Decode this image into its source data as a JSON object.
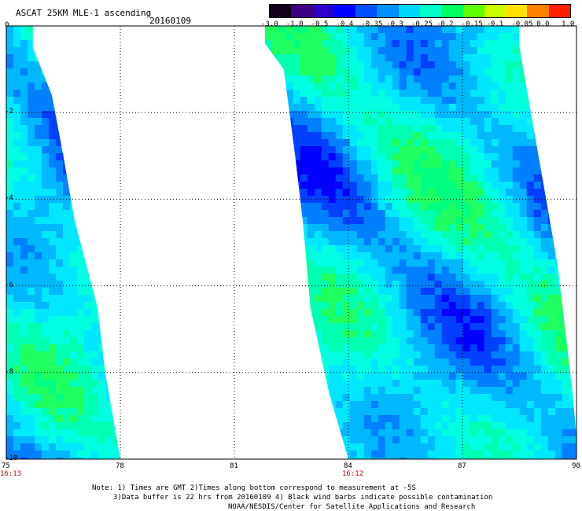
{
  "header": {
    "title": "ASCAT 25KM MLE-1 ascending",
    "date": "20160109"
  },
  "colorbar": {
    "labels": [
      "-3.0",
      "-1.0",
      "-0.5",
      "-0.4",
      "-0.35",
      "-0.3",
      "-0.25",
      "-0.2",
      "-0.15",
      "-0.1",
      "-0.05",
      "0.0",
      "1.0"
    ],
    "colors": [
      "#100018",
      "#3a0080",
      "#2a00c8",
      "#0000ff",
      "#0050ff",
      "#0090ff",
      "#00d8ff",
      "#00ffc8",
      "#00ff60",
      "#60ff00",
      "#c8ff00",
      "#ffe000",
      "#ff8000",
      "#ff2000"
    ]
  },
  "map": {
    "x_ticks": [
      "75",
      "78",
      "81",
      "84",
      "87",
      "90"
    ],
    "y_ticks": [
      "0",
      "-2",
      "-4",
      "-6",
      "-8",
      "-10"
    ],
    "lon_range": [
      75,
      90
    ],
    "lat_range": [
      -10,
      0
    ],
    "times": [
      {
        "label": "16:13",
        "lon": 75
      },
      {
        "label": "16:12",
        "lon": 84
      }
    ],
    "swaths": [
      {
        "name": "west-swath",
        "polygon_lonlat": [
          [
            75.0,
            0.0
          ],
          [
            75.7,
            0.0
          ],
          [
            75.7,
            -0.5
          ],
          [
            76.2,
            -1.6
          ],
          [
            76.5,
            -3.0
          ],
          [
            76.8,
            -4.5
          ],
          [
            77.4,
            -6.5
          ],
          [
            77.6,
            -8.0
          ],
          [
            78.0,
            -10.0
          ],
          [
            75.0,
            -10.0
          ]
        ]
      },
      {
        "name": "east-swath",
        "polygon_lonlat": [
          [
            81.8,
            0.0
          ],
          [
            88.5,
            0.0
          ],
          [
            88.5,
            -0.5
          ],
          [
            89.0,
            -3.0
          ],
          [
            89.5,
            -5.5
          ],
          [
            89.7,
            -7.0
          ],
          [
            89.9,
            -8.5
          ],
          [
            90.0,
            -9.5
          ],
          [
            90.0,
            -10.0
          ],
          [
            84.0,
            -10.0
          ],
          [
            83.5,
            -8.5
          ],
          [
            83.0,
            -6.5
          ],
          [
            82.8,
            -4.5
          ],
          [
            82.6,
            -3.0
          ],
          [
            82.3,
            -1.0
          ],
          [
            81.8,
            -0.4
          ]
        ]
      }
    ]
  },
  "footer": {
    "note_line1": "Note: 1) Times are GMT 2)Times along bottom correspond to measurement at -5S",
    "note_line2": "3)Data buffer is 22 hrs from 20160109 4) Black wind barbs indicate possible contamination",
    "credit": "NOAA/NESDIS/Center for Satellite Applications and Research"
  }
}
